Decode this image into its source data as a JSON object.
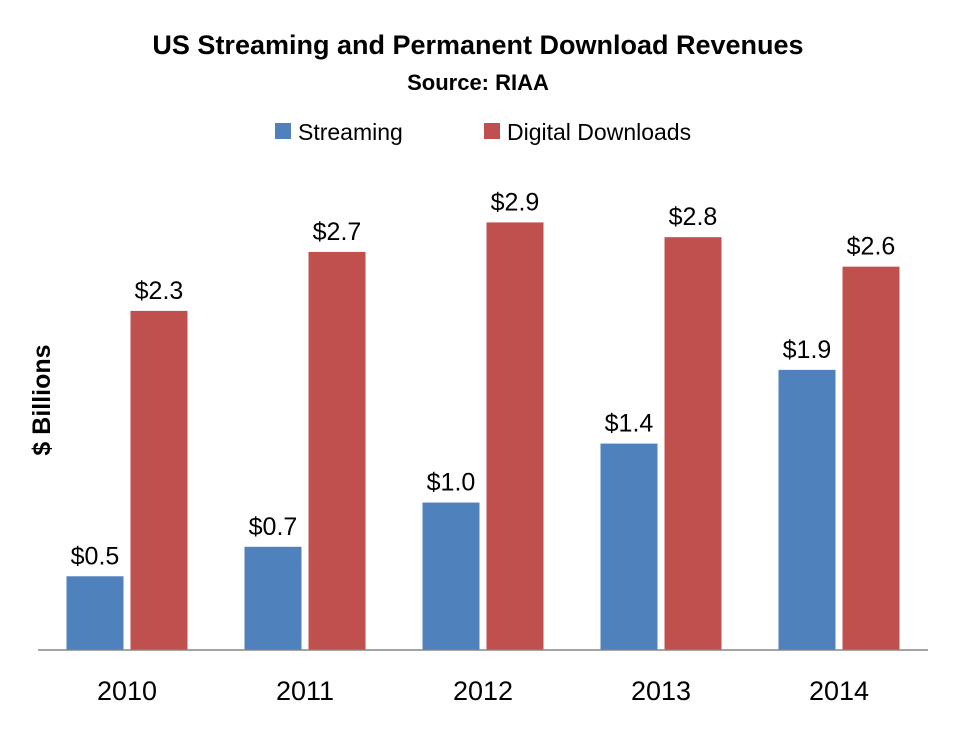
{
  "chart_data": {
    "type": "bar",
    "title": "US Streaming and Permanent Download Revenues",
    "subtitle": "Source: RIAA",
    "ylabel": "$ Billions",
    "xlabel": "",
    "categories": [
      "2010",
      "2011",
      "2012",
      "2013",
      "2014"
    ],
    "series": [
      {
        "name": "Streaming",
        "color": "#4f81bd",
        "values": [
          0.5,
          0.7,
          1.0,
          1.4,
          1.9
        ],
        "labels": [
          "$0.5",
          "$0.7",
          "$1.0",
          "$1.4",
          "$1.9"
        ]
      },
      {
        "name": "Digital Downloads",
        "color": "#c0504d",
        "values": [
          2.3,
          2.7,
          2.9,
          2.8,
          2.6
        ],
        "labels": [
          "$2.3",
          "$2.7",
          "$2.9",
          "$2.8",
          "$2.6"
        ]
      }
    ],
    "ylim": [
      0,
      3.0
    ],
    "grid": false,
    "legend": "top-center"
  }
}
